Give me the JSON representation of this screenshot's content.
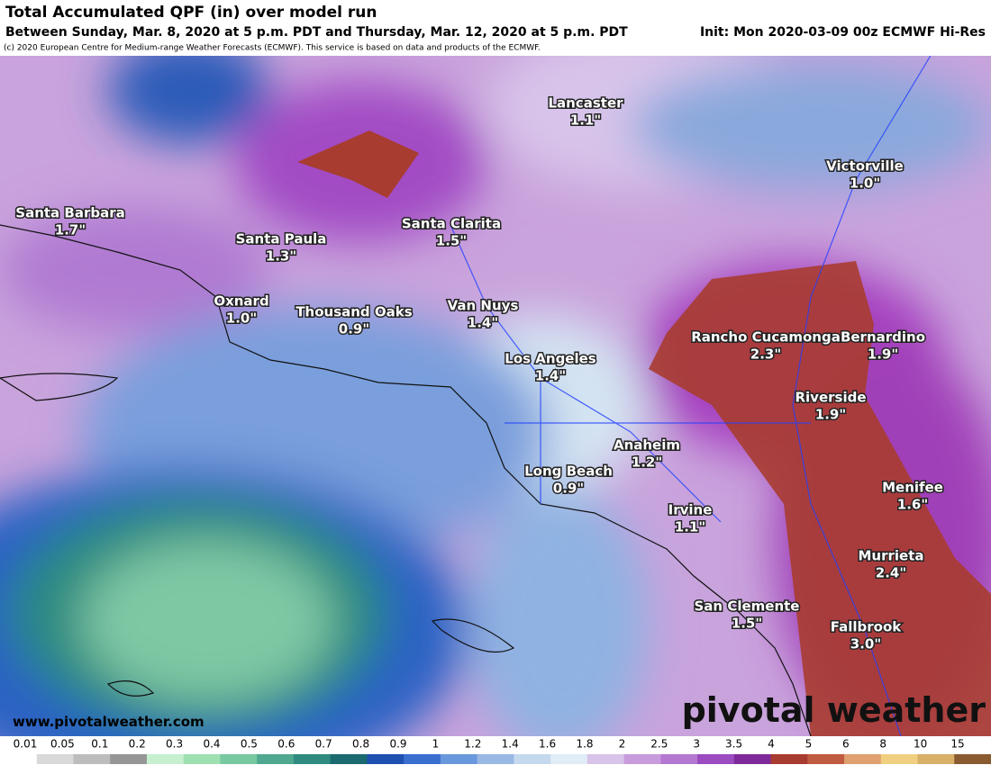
{
  "header": {
    "title": "Total Accumulated QPF (in) over model run",
    "subtitle": "Between Sunday, Mar. 8, 2020 at 5 p.m. PDT and Thursday, Mar. 12, 2020 at 5 p.m. PDT",
    "init": "Init: Mon 2020-03-09 00z ECMWF Hi-Res",
    "copyright": "(c) 2020 European Centre for Medium-range Weather Forecasts (ECMWF). This service is based on data and products of the ECMWF."
  },
  "cities": [
    {
      "name": "Lancaster",
      "value": "1.1\""
    },
    {
      "name": "Victorville",
      "value": "1.0\""
    },
    {
      "name": "Santa Barbara",
      "value": "1.7\""
    },
    {
      "name": "Santa Paula",
      "value": "1.3\""
    },
    {
      "name": "Santa Clarita",
      "value": "1.5\""
    },
    {
      "name": "Oxnard",
      "value": "1.0\""
    },
    {
      "name": "Thousand Oaks",
      "value": "0.9\""
    },
    {
      "name": "Van Nuys",
      "value": "1.4\""
    },
    {
      "name": "Los Angeles",
      "value": "1.4\""
    },
    {
      "name": "Rancho Cucamonga",
      "value": "2.3\""
    },
    {
      "name": "Bernardino",
      "value": "1.9\""
    },
    {
      "name": "Riverside",
      "value": "1.9\""
    },
    {
      "name": "Anaheim",
      "value": "1.2\""
    },
    {
      "name": "Long Beach",
      "value": "0.9\""
    },
    {
      "name": "Irvine",
      "value": "1.1\""
    },
    {
      "name": "Menifee",
      "value": "1.6\""
    },
    {
      "name": "Murrieta",
      "value": "2.4\""
    },
    {
      "name": "San Clemente",
      "value": "1.5\""
    },
    {
      "name": "Fallbrook",
      "value": "3.0\""
    }
  ],
  "footer": {
    "website": "www.pivotalweather.com",
    "logo": "pivotal weather"
  },
  "colorbar": {
    "labels": [
      "0.01",
      "0.05",
      "0.1",
      "0.2",
      "0.3",
      "0.4",
      "0.5",
      "0.6",
      "0.7",
      "0.8",
      "0.9",
      "1",
      "1.2",
      "1.4",
      "1.6",
      "1.8",
      "2",
      "2.5",
      "3",
      "3.5",
      "4",
      "5",
      "6",
      "8",
      "10",
      "15"
    ],
    "colors": [
      "#ffffff",
      "#d9d9d9",
      "#bdbdbd",
      "#969696",
      "#c7f0d0",
      "#9fe0b0",
      "#78c8a0",
      "#50a890",
      "#2f8a80",
      "#1a6a70",
      "#1f4fb0",
      "#3a6fd0",
      "#6a98dc",
      "#9ab8e4",
      "#c4d8ee",
      "#e0ecf6",
      "#d8c4e8",
      "#c89cdc",
      "#b478d0",
      "#9b4cc0",
      "#7f2a9a",
      "#a83c30",
      "#c05a40",
      "#e0a070",
      "#f0d080",
      "#d8b068",
      "#8a5a30"
    ]
  }
}
